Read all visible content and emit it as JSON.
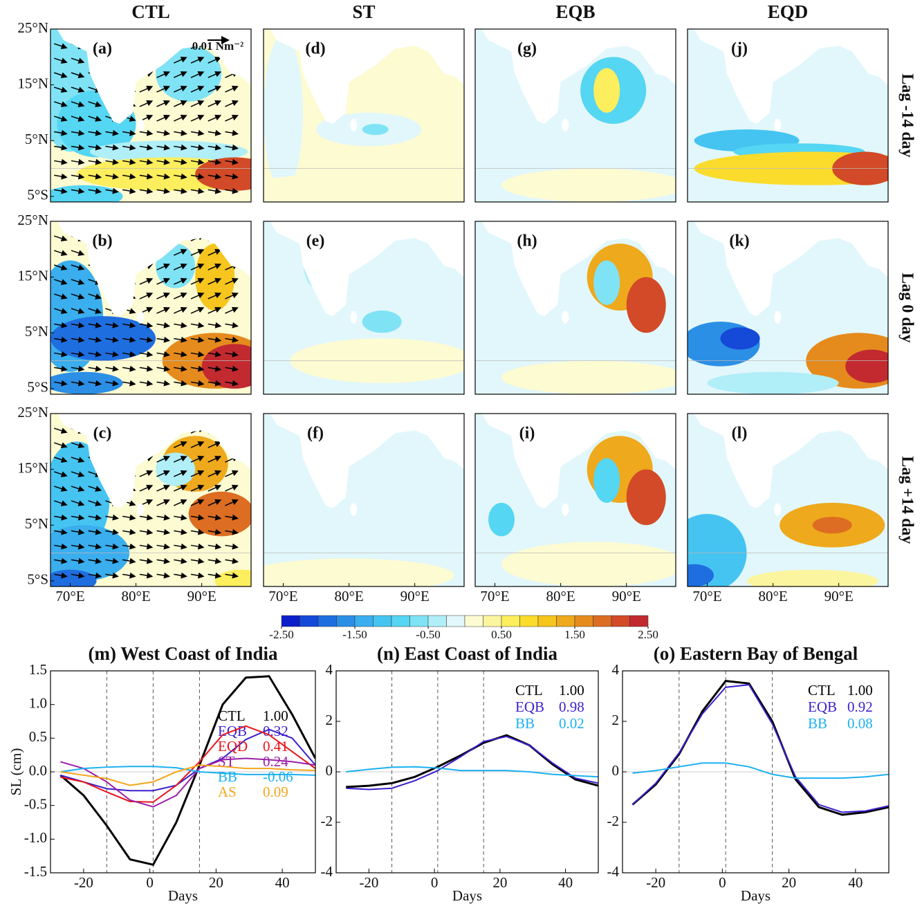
{
  "maps": {
    "columns": [
      "CTL",
      "ST",
      "EQB",
      "EQD"
    ],
    "rows": [
      "Lag -14 day",
      "Lag 0 day",
      "Lag +14 day"
    ],
    "panels": [
      "(a)",
      "(b)",
      "(c)",
      "(d)",
      "(e)",
      "(f)",
      "(g)",
      "(h)",
      "(i)",
      "(j)",
      "(k)",
      "(l)"
    ],
    "scale_label": "0.01 Nm⁻²",
    "xlim": [
      67,
      97.5
    ],
    "ylim": [
      -6,
      25
    ],
    "xticks": [
      {
        "value": 70,
        "label": "70°E"
      },
      {
        "value": 80,
        "label": "80°E"
      },
      {
        "value": 90,
        "label": "90°E"
      }
    ],
    "yticks": [
      {
        "value": 25,
        "label": "25°N"
      },
      {
        "value": 15,
        "label": "15°N"
      },
      {
        "value": 5,
        "label": "5°N"
      },
      {
        "value": -5,
        "label": "5°S"
      }
    ],
    "colorbar": {
      "lim": [
        -2.5,
        2.5
      ],
      "colors": [
        "#0a1fc9",
        "#1549d8",
        "#1f6ee0",
        "#2b8fe6",
        "#3aaeee",
        "#45c4f1",
        "#55d6f3",
        "#7fe3f5",
        "#b0eef8",
        "#e2f7fb",
        "#fdfbd2",
        "#fcf5a0",
        "#fcee5c",
        "#fbdc2c",
        "#f6c51e",
        "#eea91c",
        "#e58b1d",
        "#dd6d22",
        "#d24a27",
        "#c22a30"
      ],
      "ticks": [
        {
          "value": -2.5,
          "label": "-2.50"
        },
        {
          "value": -1.5,
          "label": "-1.50"
        },
        {
          "value": -0.5,
          "label": "-0.50"
        },
        {
          "value": 0.5,
          "label": "0.50"
        },
        {
          "value": 1.5,
          "label": "1.50"
        },
        {
          "value": 2.5,
          "label": "2.50"
        }
      ]
    }
  },
  "chart_data": [
    {
      "type": "line",
      "title": "(m) West Coast of India",
      "x_label": "Days",
      "y_label": "SL (cm)",
      "x": [
        -27,
        -20,
        -13,
        -6,
        1,
        8,
        15,
        22,
        29,
        36,
        43,
        50
      ],
      "xlim": [
        -30,
        50
      ],
      "xticks": [
        -20,
        0,
        20,
        40
      ],
      "ylim": [
        -1.5,
        1.5
      ],
      "yticks": [
        -1.5,
        {
          "value": -1,
          "label": "-1.0"
        },
        -0.5,
        {
          "value": 0,
          "label": "0.0"
        },
        0.5,
        {
          "value": 1,
          "label": "1.0"
        },
        1.5
      ],
      "vlines": [
        -13,
        1,
        15
      ],
      "series": [
        {
          "name": "CTL",
          "corr": "1.00",
          "color": "#000000",
          "values": [
            -0.05,
            -0.35,
            -0.8,
            -1.3,
            -1.38,
            -0.75,
            0.1,
            1.0,
            1.4,
            1.42,
            0.85,
            0.2
          ]
        },
        {
          "name": "EQB",
          "corr": "0.32",
          "color": "#3a1fcc",
          "values": [
            -0.05,
            -0.15,
            -0.25,
            -0.28,
            -0.28,
            -0.2,
            0.05,
            0.2,
            0.48,
            0.63,
            0.5,
            0.1
          ]
        },
        {
          "name": "EQD",
          "corr": "0.41",
          "color": "#e8141c",
          "values": [
            -0.08,
            -0.15,
            -0.3,
            -0.44,
            -0.45,
            -0.2,
            0.15,
            0.55,
            0.68,
            0.55,
            0.3,
            0.05
          ]
        },
        {
          "name": "ST",
          "corr": "0.24",
          "color": "#9b1fa8",
          "values": [
            0.15,
            0.05,
            -0.15,
            -0.42,
            -0.52,
            -0.35,
            0.05,
            0.18,
            0.2,
            0.18,
            0.15,
            0.1
          ]
        },
        {
          "name": "BB",
          "corr": "-0.06",
          "color": "#1ab0f0",
          "values": [
            0.0,
            0.05,
            0.07,
            0.08,
            0.08,
            0.06,
            0.0,
            -0.02,
            -0.04,
            -0.04,
            -0.04,
            -0.05
          ]
        },
        {
          "name": "AS",
          "corr": "0.09",
          "color": "#f5a51a",
          "values": [
            0.0,
            -0.05,
            -0.1,
            -0.2,
            -0.15,
            0.0,
            0.1,
            0.08,
            0.05,
            0.05,
            0.03,
            0.02
          ]
        }
      ]
    },
    {
      "type": "line",
      "title": "(n) East Coast of India",
      "x_label": "Days",
      "x": [
        -27,
        -20,
        -13,
        -6,
        1,
        8,
        15,
        22,
        29,
        36,
        43,
        50
      ],
      "xlim": [
        -30,
        50
      ],
      "xticks": [
        -20,
        0,
        20,
        40
      ],
      "ylim": [
        -4,
        4
      ],
      "yticks": [
        -4,
        -2,
        0,
        2,
        4
      ],
      "vlines": [
        -13,
        1,
        15
      ],
      "series": [
        {
          "name": "CTL",
          "corr": "1.00",
          "color": "#000000",
          "values": [
            -0.6,
            -0.55,
            -0.45,
            -0.2,
            0.2,
            0.65,
            1.15,
            1.45,
            1.05,
            0.3,
            -0.3,
            -0.55
          ]
        },
        {
          "name": "EQB",
          "corr": "0.98",
          "color": "#3a1fcc",
          "values": [
            -0.65,
            -0.7,
            -0.65,
            -0.35,
            0.05,
            0.6,
            1.2,
            1.4,
            1.05,
            0.35,
            -0.25,
            -0.45
          ]
        },
        {
          "name": "BB",
          "corr": "0.02",
          "color": "#1ab0f0",
          "values": [
            0.0,
            0.1,
            0.18,
            0.2,
            0.15,
            0.05,
            0.05,
            0.05,
            0.0,
            -0.1,
            -0.15,
            -0.2
          ]
        }
      ]
    },
    {
      "type": "line",
      "title": "(o) Eastern Bay of Bengal",
      "x_label": "Days",
      "x": [
        -27,
        -20,
        -13,
        -6,
        1,
        8,
        15,
        22,
        29,
        36,
        43,
        50
      ],
      "xlim": [
        -30,
        50
      ],
      "xticks": [
        -20,
        0,
        20,
        40
      ],
      "ylim": [
        -4,
        4
      ],
      "yticks": [
        -4,
        -2,
        0,
        2,
        4
      ],
      "vlines": [
        -13,
        1,
        15
      ],
      "series": [
        {
          "name": "CTL",
          "corr": "1.00",
          "color": "#000000",
          "values": [
            -1.3,
            -0.5,
            0.7,
            2.4,
            3.6,
            3.5,
            2.0,
            -0.3,
            -1.4,
            -1.7,
            -1.6,
            -1.4
          ]
        },
        {
          "name": "EQB",
          "corr": "0.92",
          "color": "#3a1fcc",
          "values": [
            -1.3,
            -0.45,
            0.75,
            2.3,
            3.35,
            3.45,
            1.9,
            -0.2,
            -1.3,
            -1.6,
            -1.55,
            -1.35
          ]
        },
        {
          "name": "BB",
          "corr": "0.08",
          "color": "#1ab0f0",
          "values": [
            -0.05,
            0.05,
            0.2,
            0.35,
            0.35,
            0.2,
            -0.1,
            -0.25,
            -0.25,
            -0.25,
            -0.2,
            -0.1
          ]
        }
      ]
    }
  ]
}
